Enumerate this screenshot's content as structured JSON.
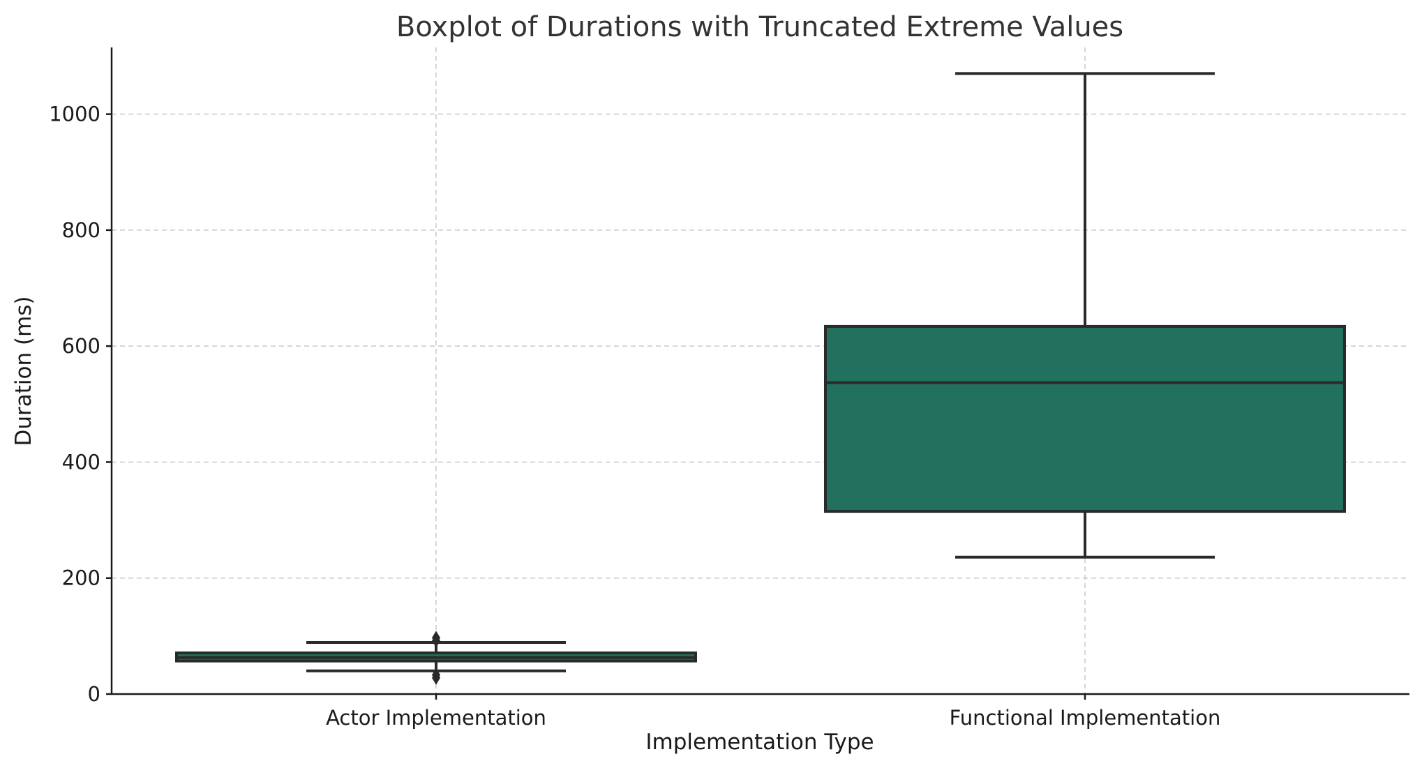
{
  "chart_data": {
    "type": "box",
    "title": "Boxplot of Durations with Truncated Extreme Values",
    "xlabel": "Implementation Type",
    "ylabel": "Duration (ms)",
    "ylim": [
      0,
      1115
    ],
    "yticks": [
      0,
      200,
      400,
      600,
      800,
      1000
    ],
    "grid": true,
    "color": "#22705e",
    "categories": [
      "Actor Implementation",
      "Functional Implementation"
    ],
    "boxes": [
      {
        "category": "Actor Implementation",
        "whisker_low": 40,
        "q1": 57,
        "median": 63,
        "q3": 71,
        "whisker_high": 89,
        "outliers": [
          28,
          33,
          92,
          97
        ]
      },
      {
        "category": "Functional Implementation",
        "whisker_low": 236,
        "q1": 315,
        "median": 537,
        "q3": 634,
        "whisker_high": 1070,
        "outliers": []
      }
    ]
  }
}
